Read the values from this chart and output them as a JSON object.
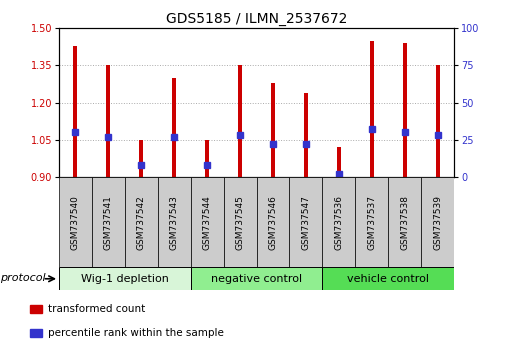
{
  "title": "GDS5185 / ILMN_2537672",
  "samples": [
    "GSM737540",
    "GSM737541",
    "GSM737542",
    "GSM737543",
    "GSM737544",
    "GSM737545",
    "GSM737546",
    "GSM737547",
    "GSM737536",
    "GSM737537",
    "GSM737538",
    "GSM737539"
  ],
  "bar_values": [
    1.43,
    1.35,
    1.05,
    1.3,
    1.05,
    1.35,
    1.28,
    1.24,
    1.02,
    1.45,
    1.44,
    1.35
  ],
  "bar_base": 0.9,
  "percentile_values": [
    30,
    27,
    8,
    27,
    8,
    28,
    22,
    22,
    2,
    32,
    30,
    28
  ],
  "percentile_scale_max": 100,
  "ylim_left": [
    0.9,
    1.5
  ],
  "yticks_left": [
    0.9,
    1.05,
    1.2,
    1.35,
    1.5
  ],
  "yticks_right": [
    0,
    25,
    50,
    75,
    100
  ],
  "bar_color": "#cc0000",
  "dot_color": "#3333cc",
  "bar_width": 0.12,
  "group_labels": [
    "Wig-1 depletion",
    "negative control",
    "vehicle control"
  ],
  "group_ranges": [
    [
      0,
      3
    ],
    [
      4,
      7
    ],
    [
      8,
      11
    ]
  ],
  "group_colors_light": "#d8f5d8",
  "group_colors_mid": "#90ee90",
  "group_colors_dark": "#55dd55",
  "sample_box_color": "#cccccc",
  "protocol_label": "protocol",
  "legend_items": [
    {
      "label": "transformed count",
      "color": "#cc0000"
    },
    {
      "label": "percentile rank within the sample",
      "color": "#3333cc"
    }
  ],
  "title_fontsize": 10,
  "tick_fontsize": 7,
  "label_fontsize": 8,
  "group_label_fontsize": 8,
  "background_color": "#ffffff",
  "plot_bg_color": "#ffffff",
  "left_tick_color": "#cc0000",
  "right_tick_color": "#3333cc",
  "grid_color": "#aaaaaa"
}
